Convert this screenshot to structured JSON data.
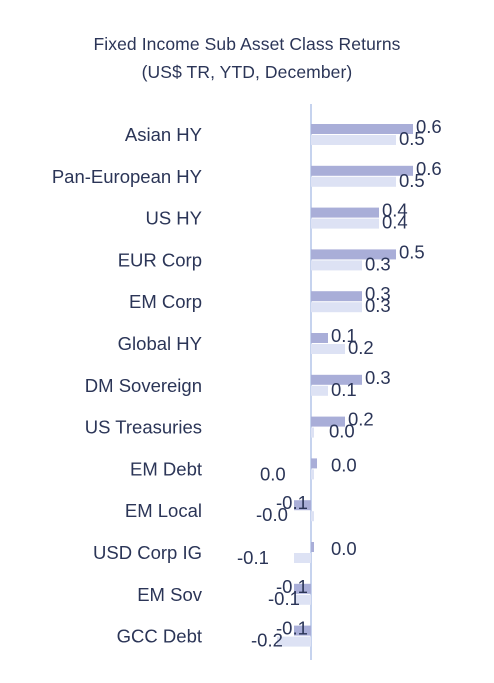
{
  "chart_data": {
    "type": "bar",
    "orientation": "horizontal",
    "title": "Fixed Income Sub Asset Class Returns",
    "subtitle": "(US$ TR, YTD, December)",
    "categories": [
      "Asian HY",
      "Pan-European HY",
      "US HY",
      "EUR Corp",
      "EM Corp",
      "Global HY",
      "DM Sovereign",
      "US Treasuries",
      "EM Debt",
      "EM Local",
      "USD Corp IG",
      "EM Sov",
      "GCC Debt"
    ],
    "series": [
      {
        "color": "#a9aed8",
        "values": [
          0.6,
          0.6,
          0.4,
          0.5,
          0.3,
          0.1,
          0.3,
          0.2,
          0.0,
          -0.1,
          0.0,
          -0.1,
          -0.1
        ],
        "labels": [
          "0.6",
          "0.6",
          "0.4",
          "0.5",
          "0.3",
          "0.1",
          "0.3",
          "0.2",
          "0.0",
          "-0.1",
          "0.0",
          "-0.1",
          "-0.1"
        ]
      },
      {
        "color": "#dde2f4",
        "values": [
          0.5,
          0.5,
          0.4,
          0.3,
          0.3,
          0.2,
          0.1,
          0.0,
          0.0,
          -0.0,
          -0.1,
          -0.1,
          -0.2
        ],
        "labels": [
          "0.5",
          "0.5",
          "0.4",
          "0.3",
          "0.3",
          "0.2",
          "0.1",
          "0.0",
          "0.0",
          "-0.0",
          "-0.1",
          "-0.1",
          "-0.2"
        ]
      }
    ],
    "xlim": [
      -0.2,
      0.6
    ],
    "axis_color": "#c6d3ee",
    "grid": false,
    "legend": "none"
  }
}
